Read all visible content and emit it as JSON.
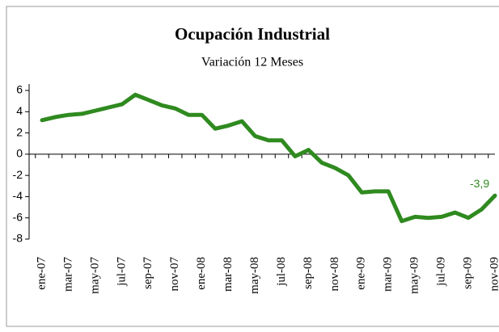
{
  "chart_data": {
    "type": "line",
    "title": "Ocupación Industrial",
    "subtitle": "Variación  12 Meses",
    "categories": [
      "ene-07",
      null,
      "mar-07",
      null,
      "may-07",
      null,
      "jul-07",
      null,
      "sep-07",
      null,
      "nov-07",
      null,
      "ene-08",
      null,
      "mar-08",
      null,
      "may-08",
      null,
      "jul-08",
      null,
      "sep-08",
      null,
      "nov-08",
      null,
      "ene-09",
      null,
      "mar-09",
      null,
      "may-09",
      null,
      "jul-09",
      null,
      "sep-09",
      null,
      "nov-09"
    ],
    "series": [
      {
        "name": "Ocupación Industrial",
        "color": "#2f8a1f",
        "values": [
          3.2,
          3.5,
          3.7,
          3.8,
          4.1,
          4.4,
          4.7,
          5.6,
          5.1,
          4.6,
          4.3,
          3.7,
          3.7,
          2.4,
          2.7,
          3.1,
          1.7,
          1.3,
          1.3,
          -0.2,
          0.4,
          -0.8,
          -1.3,
          -2.0,
          -3.6,
          -3.5,
          -3.5,
          -6.3,
          -5.9,
          -6.0,
          -5.9,
          -5.5,
          -6.0,
          -5.2,
          -3.9
        ],
        "value_labels": [
          null,
          null,
          null,
          null,
          null,
          null,
          null,
          null,
          null,
          null,
          null,
          null,
          null,
          null,
          null,
          null,
          null,
          null,
          null,
          null,
          null,
          null,
          null,
          null,
          null,
          null,
          null,
          null,
          null,
          null,
          null,
          null,
          null,
          null,
          "-3,9"
        ]
      }
    ],
    "ylim": [
      -8,
      6
    ],
    "yticks": [
      -8,
      -6,
      -4,
      -2,
      0,
      2,
      4,
      6
    ],
    "grid": false
  }
}
